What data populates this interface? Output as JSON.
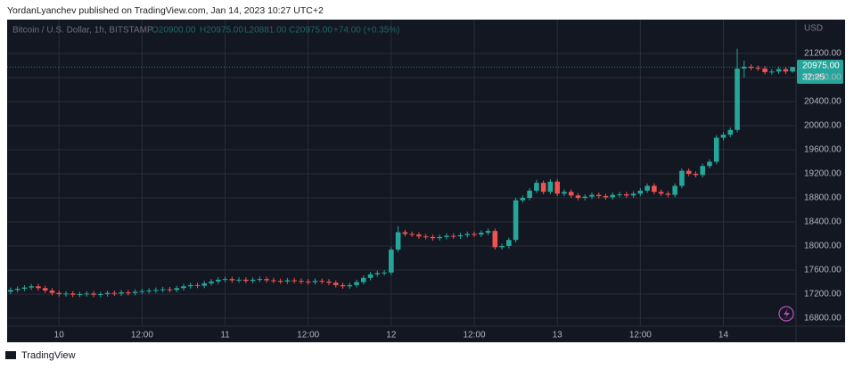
{
  "header": {
    "publisher": "YordanLyanchev published on TradingView.com, Jan 14, 2023 10:27 UTC+2"
  },
  "footer": {
    "brand": "TradingView"
  },
  "chart_data": {
    "type": "candlestick",
    "legend": {
      "symbol": "Bitcoin / U.S. Dollar, 1h, BITSTAMP",
      "open": "O20900.00",
      "high": "H20975.00",
      "low": "L20881.00",
      "close": "C20975.00",
      "change": "+74.00 (+0.35%)"
    },
    "currency": "USD",
    "price_tag": {
      "price": "20975.00",
      "countdown": "32:25"
    },
    "up_color": "#26a69a",
    "down_color": "#ef5350",
    "grid": true,
    "categories": [
      null,
      null,
      null,
      null,
      null,
      null,
      null,
      "10",
      null,
      null,
      null,
      null,
      null,
      null,
      null,
      null,
      null,
      null,
      null,
      "12:00",
      null,
      null,
      null,
      null,
      null,
      null,
      null,
      null,
      null,
      null,
      null,
      "11",
      null,
      null,
      null,
      null,
      null,
      null,
      null,
      null,
      null,
      null,
      null,
      "12:00",
      null,
      null,
      null,
      null,
      null,
      null,
      null,
      null,
      null,
      null,
      null,
      "12",
      null,
      null,
      null,
      null,
      null,
      null,
      null,
      null,
      null,
      null,
      null,
      "12:00",
      null,
      null,
      null,
      null,
      null,
      null,
      null,
      null,
      null,
      null,
      null,
      "13",
      null,
      null,
      null,
      null,
      null,
      null,
      null,
      null,
      null,
      null,
      null,
      "12:00",
      null,
      null,
      null,
      null,
      null,
      null,
      null,
      null,
      null,
      null,
      null,
      "14",
      null,
      null,
      null,
      null,
      null,
      null,
      null,
      null,
      null,
      null
    ],
    "open": [
      17240,
      17270,
      17290,
      17310,
      17330,
      17300,
      17260,
      17220,
      17200,
      17210,
      17190,
      17200,
      17210,
      17190,
      17200,
      17220,
      17210,
      17230,
      17220,
      17240,
      17250,
      17260,
      17270,
      17280,
      17270,
      17300,
      17330,
      17350,
      17340,
      17380,
      17410,
      17440,
      17450,
      17430,
      17440,
      17420,
      17440,
      17450,
      17430,
      17420,
      17410,
      17430,
      17420,
      17410,
      17400,
      17420,
      17410,
      17390,
      17350,
      17330,
      17350,
      17400,
      17470,
      17530,
      17550,
      17560,
      17940,
      18230,
      18200,
      18190,
      18160,
      18150,
      18130,
      18150,
      18170,
      18160,
      18180,
      18200,
      18190,
      18220,
      18250,
      17980,
      18000,
      18100,
      18760,
      18800,
      18920,
      19050,
      18900,
      19070,
      18870,
      18900,
      18840,
      18800,
      18820,
      18850,
      18830,
      18810,
      18850,
      18860,
      18840,
      18870,
      18920,
      19000,
      18900,
      18870,
      18850,
      19000,
      19250,
      19200,
      19180,
      19330,
      19400,
      19800,
      19850,
      19930,
      20950,
      20980,
      20960,
      20950,
      20890,
      20900,
      20940,
      20900
    ],
    "high": [
      17310,
      17330,
      17350,
      17370,
      17370,
      17340,
      17300,
      17260,
      17250,
      17250,
      17240,
      17250,
      17250,
      17240,
      17260,
      17260,
      17270,
      17270,
      17280,
      17290,
      17300,
      17310,
      17320,
      17320,
      17340,
      17370,
      17390,
      17390,
      17420,
      17450,
      17480,
      17490,
      17490,
      17480,
      17480,
      17480,
      17490,
      17490,
      17470,
      17460,
      17470,
      17470,
      17460,
      17450,
      17460,
      17460,
      17450,
      17430,
      17390,
      17390,
      17440,
      17510,
      17570,
      17590,
      17600,
      17980,
      18330,
      18270,
      18240,
      18230,
      18200,
      18190,
      18190,
      18210,
      18210,
      18220,
      18240,
      18240,
      18260,
      18290,
      18290,
      18040,
      18140,
      18800,
      18840,
      18960,
      19100,
      19090,
      19110,
      19110,
      18940,
      18940,
      18880,
      18860,
      18890,
      18890,
      18870,
      18890,
      18900,
      18900,
      18910,
      18960,
      19040,
      19040,
      18940,
      18910,
      19040,
      19290,
      19290,
      19240,
      19370,
      19440,
      19840,
      19890,
      19970,
      21280,
      21080,
      21020,
      21000,
      20990,
      20940,
      20980,
      20980,
      20975
    ],
    "low": [
      17200,
      17230,
      17250,
      17270,
      17260,
      17220,
      17180,
      17160,
      17160,
      17150,
      17150,
      17160,
      17150,
      17150,
      17160,
      17170,
      17170,
      17180,
      17180,
      17200,
      17210,
      17220,
      17230,
      17230,
      17230,
      17260,
      17290,
      17300,
      17300,
      17340,
      17370,
      17400,
      17390,
      17390,
      17380,
      17380,
      17400,
      17390,
      17380,
      17370,
      17370,
      17380,
      17370,
      17360,
      17360,
      17370,
      17350,
      17310,
      17290,
      17290,
      17310,
      17360,
      17430,
      17490,
      17510,
      17520,
      17900,
      18160,
      18150,
      18120,
      18110,
      18090,
      18090,
      18110,
      18120,
      18120,
      18140,
      18150,
      18150,
      18180,
      17940,
      17940,
      17960,
      18060,
      18720,
      18760,
      18880,
      18860,
      18860,
      18830,
      18830,
      18800,
      18760,
      18760,
      18780,
      18790,
      18770,
      18770,
      18810,
      18800,
      18800,
      18830,
      18880,
      18860,
      18830,
      18810,
      18810,
      18960,
      19160,
      19140,
      19140,
      19290,
      19360,
      19760,
      19810,
      19890,
      20800,
      20920,
      20910,
      20850,
      20850,
      20860,
      20860,
      20881
    ],
    "close": [
      17270,
      17290,
      17310,
      17330,
      17300,
      17260,
      17220,
      17200,
      17210,
      17190,
      17200,
      17210,
      17190,
      17200,
      17220,
      17210,
      17230,
      17220,
      17240,
      17250,
      17260,
      17270,
      17280,
      17270,
      17300,
      17330,
      17350,
      17340,
      17380,
      17410,
      17440,
      17450,
      17430,
      17440,
      17420,
      17440,
      17450,
      17430,
      17420,
      17410,
      17430,
      17420,
      17410,
      17400,
      17420,
      17410,
      17390,
      17350,
      17330,
      17350,
      17400,
      17470,
      17530,
      17550,
      17560,
      17940,
      18230,
      18200,
      18190,
      18160,
      18150,
      18130,
      18150,
      18170,
      18160,
      18180,
      18200,
      18190,
      18220,
      18250,
      17980,
      18000,
      18100,
      18760,
      18800,
      18920,
      19050,
      18900,
      19070,
      18870,
      18900,
      18840,
      18800,
      18820,
      18850,
      18830,
      18810,
      18850,
      18860,
      18840,
      18870,
      18920,
      19000,
      18900,
      18870,
      18850,
      19000,
      19250,
      19200,
      19180,
      19330,
      19400,
      19800,
      19850,
      19930,
      20950,
      20980,
      20960,
      20950,
      20890,
      20900,
      20940,
      20900,
      20975
    ],
    "ylim": [
      16667,
      21763
    ],
    "yticks": [
      {
        "value": 16800,
        "label": "16800.00"
      },
      {
        "value": 17200,
        "label": "17200.00"
      },
      {
        "value": 17600,
        "label": "17600.00"
      },
      {
        "value": 18000,
        "label": "18000.00"
      },
      {
        "value": 18400,
        "label": "18400.00"
      },
      {
        "value": 18800,
        "label": "18800.00"
      },
      {
        "value": 19200,
        "label": "19200.00"
      },
      {
        "value": 19600,
        "label": "19600.00"
      },
      {
        "value": 20000,
        "label": "20000.00"
      },
      {
        "value": 20400,
        "label": "20400.00"
      },
      {
        "value": 20800,
        "label": "20800.00"
      },
      {
        "value": 21200,
        "label": "21200.00"
      }
    ]
  }
}
